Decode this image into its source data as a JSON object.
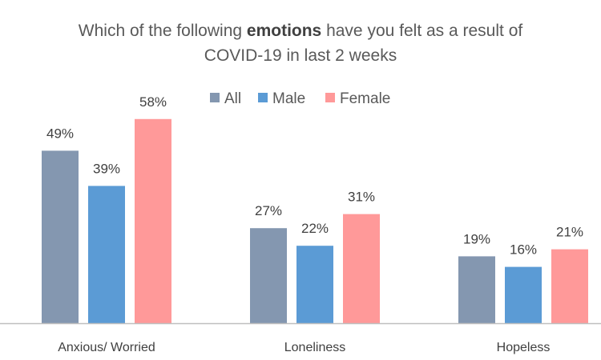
{
  "chart_data": {
    "type": "bar",
    "title": {
      "line1_pre": "Which of the following ",
      "line1_emph": "emotions",
      "line1_post": " have you felt as a result of",
      "line2": "COVID-19 in last 2 weeks"
    },
    "categories": [
      "Anxious/ Worried",
      "Loneliness",
      "Hopeless"
    ],
    "series": [
      {
        "name": "All",
        "color": "#8497B0",
        "values": [
          49,
          27,
          19
        ],
        "labels": [
          "49%",
          "27%",
          "19%"
        ]
      },
      {
        "name": "Male",
        "color": "#5B9BD5",
        "values": [
          39,
          22,
          16
        ],
        "labels": [
          "39%",
          "22%",
          "16%"
        ]
      },
      {
        "name": "Female",
        "color": "#FF9999",
        "values": [
          58,
          31,
          21
        ],
        "labels": [
          "58%",
          "31%",
          "21%"
        ]
      }
    ],
    "ylim": [
      0,
      60
    ],
    "grid": false,
    "legend_position": "top-center",
    "axis_color": "#BFBFBF"
  }
}
